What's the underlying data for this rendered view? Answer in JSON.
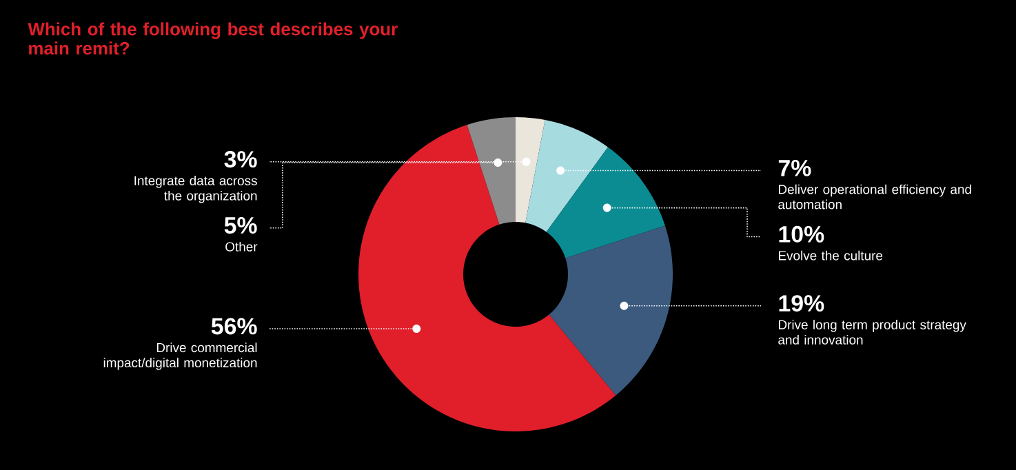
{
  "chart_data": {
    "type": "donut",
    "title": "Which of the following best describes your main remit?",
    "categories": [
      "Integrate data across the organization",
      "Deliver operational efficiency and automation",
      "Evolve the culture",
      "Drive long term product strategy and innovation",
      "Drive commercial impact/digital monetization",
      "Other"
    ],
    "values": [
      3,
      7,
      10,
      19,
      56,
      5
    ],
    "value_labels": [
      "3%",
      "7%",
      "10%",
      "19%",
      "56%",
      "5%"
    ],
    "colors": [
      "#ebe6dc",
      "#a6dbe0",
      "#0b8c92",
      "#3b5a7e",
      "#e01f2b",
      "#8c8c8c"
    ]
  }
}
